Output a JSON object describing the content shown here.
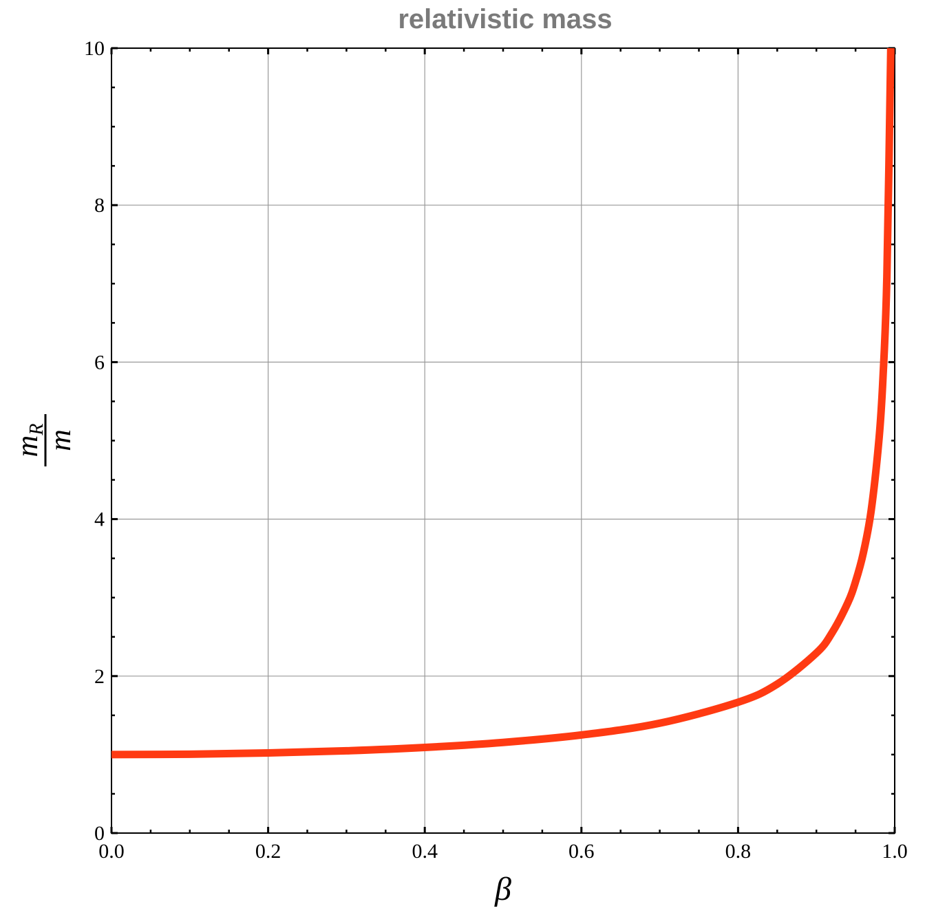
{
  "chart_data": {
    "type": "line",
    "title": "relativistic mass",
    "xlabel": "β",
    "ylabel": {
      "numerator": "m",
      "numerator_subscript": "R",
      "denominator": "m"
    },
    "xlim": [
      0.0,
      1.0
    ],
    "ylim": [
      0,
      10
    ],
    "x_ticks": [
      "0.0",
      "0.2",
      "0.4",
      "0.6",
      "0.8",
      "1.0"
    ],
    "y_ticks": [
      "0",
      "2",
      "4",
      "6",
      "8",
      "10"
    ],
    "grid": true,
    "legend": "none",
    "series": [
      {
        "color": "#ff3a12",
        "x": [
          0.0,
          0.1,
          0.2,
          0.3,
          0.4,
          0.5,
          0.6,
          0.7,
          0.8,
          0.85,
          0.9,
          0.92,
          0.94,
          0.95,
          0.96,
          0.97,
          0.98,
          0.985,
          0.99,
          0.995
        ],
        "y": [
          1.0,
          1.005,
          1.021,
          1.048,
          1.091,
          1.155,
          1.25,
          1.4,
          1.667,
          1.898,
          2.294,
          2.552,
          2.931,
          3.203,
          3.571,
          4.113,
          5.025,
          5.795,
          7.089,
          10.0
        ]
      }
    ]
  }
}
